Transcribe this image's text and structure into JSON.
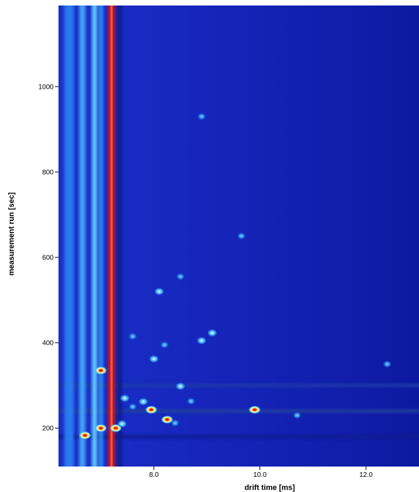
{
  "chart_data": {
    "type": "heatmap",
    "title": "",
    "xlabel": "drift time [ms]",
    "ylabel": "measurement run [sec]",
    "xlim": [
      6.2,
      13.0
    ],
    "ylim": [
      110,
      1190
    ],
    "xticks": [
      8.0,
      10.0,
      12.0
    ],
    "xtick_labels": [
      "8.0",
      "10.0",
      "12.0"
    ],
    "yticks": [
      200,
      400,
      600,
      800,
      1000
    ],
    "ytick_labels": [
      "200",
      "400",
      "600",
      "800",
      "1000"
    ],
    "colormap": [
      "#0a0a8c",
      "#1a33d9",
      "#2f8cf0",
      "#7fdcff",
      "#ffff60",
      "#ff2a10",
      "#c00000"
    ],
    "background_color": "#1523b8",
    "grid": false,
    "legend": "none",
    "vertical_bands": [
      {
        "drift_time": 6.4,
        "width": 0.18,
        "color": "#2a7af0"
      },
      {
        "drift_time": 6.65,
        "width": 0.12,
        "color": "#3fa0f6"
      },
      {
        "drift_time": 6.88,
        "width": 0.1,
        "color": "#60c8ff"
      },
      {
        "drift_time": 7.0,
        "width": 0.08,
        "color": "#2f8cf0"
      },
      {
        "drift_time": 7.2,
        "width": 0.12,
        "color": "#e01008"
      },
      {
        "drift_time": 7.35,
        "width": 0.08,
        "color": "#0a1a80"
      }
    ],
    "horizontal_bands": [
      {
        "run": 180,
        "color": "#0d1f8f"
      },
      {
        "run": 240,
        "color": "#20409f"
      },
      {
        "run": 300,
        "color": "#1d3aa8"
      }
    ],
    "peaks": [
      {
        "drift_time": 6.7,
        "run": 183,
        "intensity": "high"
      },
      {
        "drift_time": 7.0,
        "run": 200,
        "intensity": "high"
      },
      {
        "drift_time": 7.0,
        "run": 335,
        "intensity": "high"
      },
      {
        "drift_time": 7.28,
        "run": 200,
        "intensity": "high"
      },
      {
        "drift_time": 7.45,
        "run": 270,
        "intensity": "medium"
      },
      {
        "drift_time": 7.4,
        "run": 210,
        "intensity": "medium"
      },
      {
        "drift_time": 7.6,
        "run": 250,
        "intensity": "low"
      },
      {
        "drift_time": 7.8,
        "run": 262,
        "intensity": "medium"
      },
      {
        "drift_time": 7.95,
        "run": 243,
        "intensity": "high"
      },
      {
        "drift_time": 8.25,
        "run": 220,
        "intensity": "high"
      },
      {
        "drift_time": 8.4,
        "run": 212,
        "intensity": "low"
      },
      {
        "drift_time": 8.5,
        "run": 298,
        "intensity": "medium"
      },
      {
        "drift_time": 8.0,
        "run": 362,
        "intensity": "medium"
      },
      {
        "drift_time": 8.1,
        "run": 520,
        "intensity": "medium"
      },
      {
        "drift_time": 8.9,
        "run": 405,
        "intensity": "medium"
      },
      {
        "drift_time": 9.1,
        "run": 423,
        "intensity": "medium"
      },
      {
        "drift_time": 9.9,
        "run": 243,
        "intensity": "high"
      },
      {
        "drift_time": 10.7,
        "run": 230,
        "intensity": "low"
      },
      {
        "drift_time": 9.65,
        "run": 650,
        "intensity": "low"
      },
      {
        "drift_time": 8.9,
        "run": 930,
        "intensity": "low"
      },
      {
        "drift_time": 12.4,
        "run": 350,
        "intensity": "low"
      },
      {
        "drift_time": 7.6,
        "run": 415,
        "intensity": "low"
      },
      {
        "drift_time": 8.2,
        "run": 395,
        "intensity": "low"
      },
      {
        "drift_time": 8.7,
        "run": 263,
        "intensity": "low"
      },
      {
        "drift_time": 8.5,
        "run": 555,
        "intensity": "low"
      }
    ]
  }
}
